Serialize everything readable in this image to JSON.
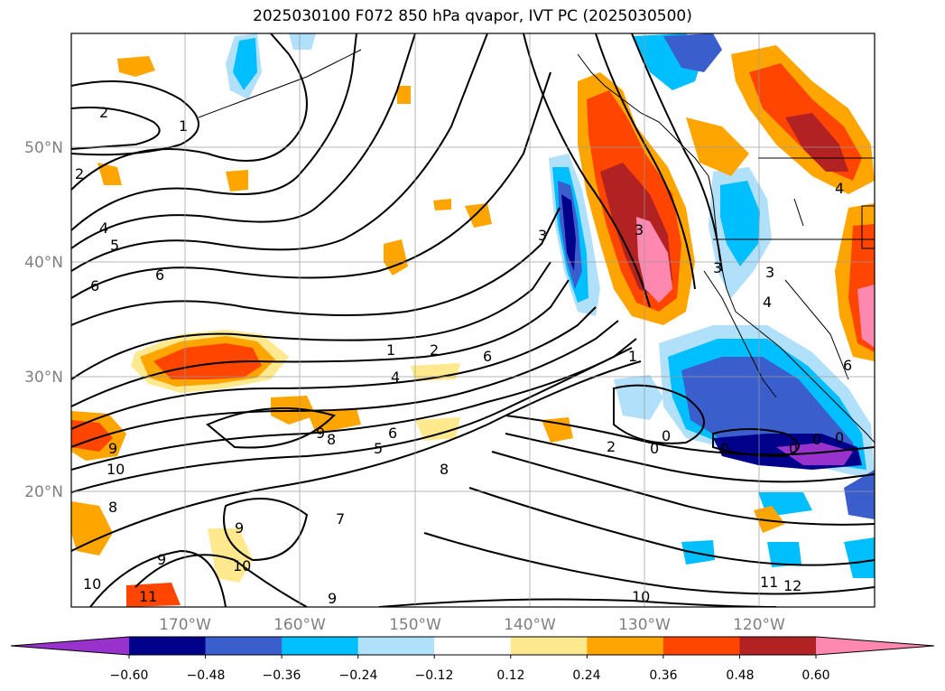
{
  "title": "2025030100 F072 850 hPa qvapor, IVT PC (2025030500)",
  "lat_labels": [
    "50°N",
    "40°N",
    "30°N",
    "20°N"
  ],
  "lon_labels": [
    "170°W",
    "160°W",
    "150°W",
    "140°W",
    "130°W",
    "120°W"
  ],
  "colorbar": {
    "tick_labels": [
      "−0.60",
      "−0.48",
      "−0.36",
      "−0.24",
      "−0.12",
      "0.12",
      "0.24",
      "0.36",
      "0.48",
      "0.60"
    ],
    "colors": [
      "#9932cc",
      "#00008b",
      "#3a5fcd",
      "#00bfff",
      "#b0e0fa",
      "#ffffff",
      "#ffe98f",
      "#ffa500",
      "#ff4500",
      "#b22222",
      "#ff88b0"
    ]
  },
  "contour_labels": [
    {
      "text": "2"
    },
    {
      "text": "1"
    },
    {
      "text": "2"
    },
    {
      "text": "4"
    },
    {
      "text": "5"
    },
    {
      "text": "6"
    },
    {
      "text": "6"
    },
    {
      "text": "1"
    },
    {
      "text": "2"
    },
    {
      "text": "4"
    },
    {
      "text": "6"
    },
    {
      "text": "9"
    },
    {
      "text": "8"
    },
    {
      "text": "5"
    },
    {
      "text": "6"
    },
    {
      "text": "8"
    },
    {
      "text": "9"
    },
    {
      "text": "10"
    },
    {
      "text": "8"
    },
    {
      "text": "9"
    },
    {
      "text": "10"
    },
    {
      "text": "9"
    },
    {
      "text": "7"
    },
    {
      "text": "10"
    },
    {
      "text": "11"
    },
    {
      "text": "9"
    },
    {
      "text": "3"
    },
    {
      "text": "3"
    },
    {
      "text": "1"
    },
    {
      "text": "2"
    },
    {
      "text": "0"
    },
    {
      "text": "0"
    },
    {
      "text": "0"
    },
    {
      "text": "0"
    },
    {
      "text": "0"
    },
    {
      "text": "0"
    },
    {
      "text": "10"
    },
    {
      "text": "11"
    },
    {
      "text": "12"
    },
    {
      "text": "3"
    },
    {
      "text": "3"
    },
    {
      "text": "4"
    },
    {
      "text": "4"
    },
    {
      "text": "6"
    }
  ]
}
